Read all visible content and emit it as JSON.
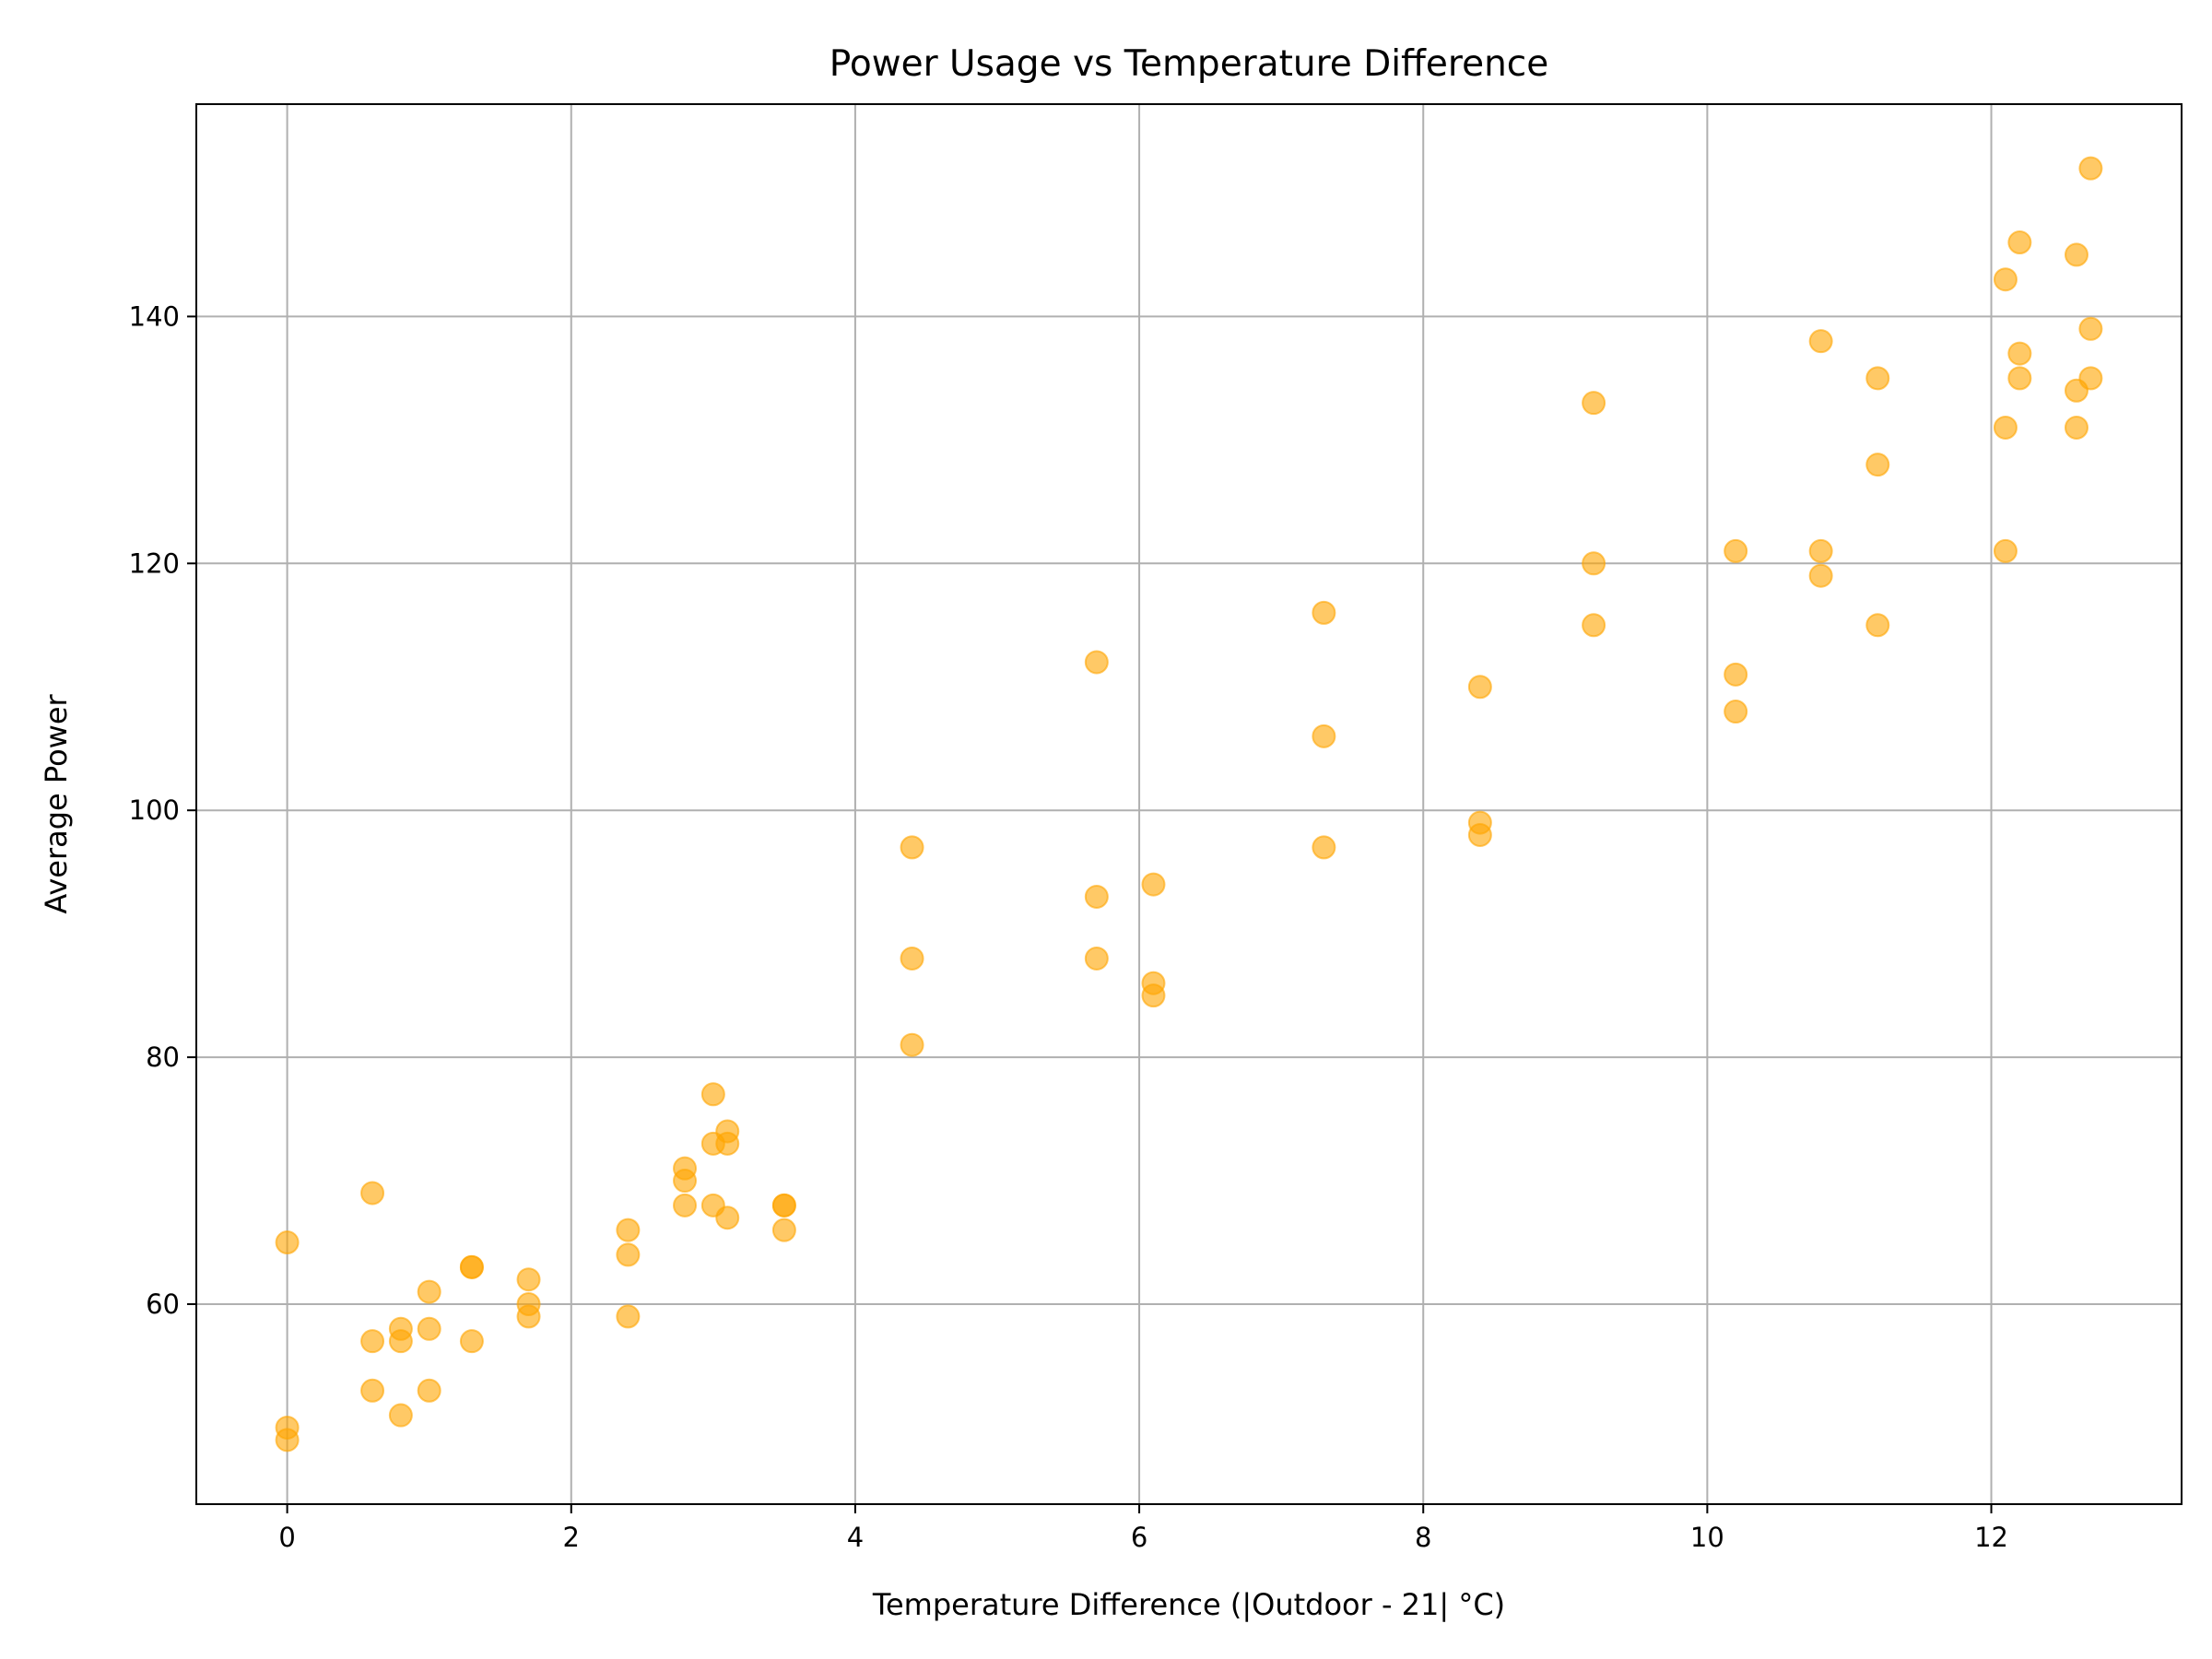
{
  "chart_data": {
    "type": "scatter",
    "title": "Power Usage vs Temperature Difference",
    "xlabel": "Temperature Difference (|Outdoor - 21| °C)",
    "ylabel": "Average Power",
    "xlim": [
      -0.64,
      13.34
    ],
    "ylim": [
      43.8,
      157.2
    ],
    "xticks": [
      0,
      2,
      4,
      6,
      8,
      10,
      12
    ],
    "yticks": [
      60,
      80,
      100,
      120,
      140
    ],
    "grid": true,
    "legend": "none",
    "marker_color": "#FFA500",
    "marker_alpha": 0.6,
    "points": [
      [
        0,
        65
      ],
      [
        0,
        50
      ],
      [
        0,
        49
      ],
      [
        0.6,
        69
      ],
      [
        0.6,
        57
      ],
      [
        0.6,
        53
      ],
      [
        0.8,
        58
      ],
      [
        0.8,
        57
      ],
      [
        0.8,
        51
      ],
      [
        1.0,
        61
      ],
      [
        1.0,
        58
      ],
      [
        1.0,
        53
      ],
      [
        1.3,
        63
      ],
      [
        1.3,
        63
      ],
      [
        1.3,
        57
      ],
      [
        1.7,
        62
      ],
      [
        1.7,
        60
      ],
      [
        1.7,
        59
      ],
      [
        2.4,
        66
      ],
      [
        2.4,
        64
      ],
      [
        2.4,
        59
      ],
      [
        2.8,
        71
      ],
      [
        2.8,
        70
      ],
      [
        2.8,
        68
      ],
      [
        3.0,
        77
      ],
      [
        3.0,
        73
      ],
      [
        3.0,
        68
      ],
      [
        3.1,
        74
      ],
      [
        3.1,
        73
      ],
      [
        3.1,
        67
      ],
      [
        3.5,
        68
      ],
      [
        3.5,
        68
      ],
      [
        3.5,
        66
      ],
      [
        4.4,
        97
      ],
      [
        4.4,
        88
      ],
      [
        4.4,
        81
      ],
      [
        5.7,
        112
      ],
      [
        5.7,
        93
      ],
      [
        5.7,
        88
      ],
      [
        6.1,
        94
      ],
      [
        6.1,
        86
      ],
      [
        6.1,
        85
      ],
      [
        7.3,
        116
      ],
      [
        7.3,
        106
      ],
      [
        7.3,
        97
      ],
      [
        8.4,
        110
      ],
      [
        8.4,
        99
      ],
      [
        8.4,
        98
      ],
      [
        9.2,
        133
      ],
      [
        9.2,
        120
      ],
      [
        9.2,
        115
      ],
      [
        10.2,
        121
      ],
      [
        10.2,
        111
      ],
      [
        10.2,
        108
      ],
      [
        10.8,
        138
      ],
      [
        10.8,
        121
      ],
      [
        10.8,
        119
      ],
      [
        11.2,
        135
      ],
      [
        11.2,
        128
      ],
      [
        11.2,
        115
      ],
      [
        12.1,
        143
      ],
      [
        12.1,
        131
      ],
      [
        12.1,
        121
      ],
      [
        12.2,
        146
      ],
      [
        12.2,
        137
      ],
      [
        12.2,
        135
      ],
      [
        12.6,
        145
      ],
      [
        12.6,
        134
      ],
      [
        12.6,
        131
      ],
      [
        12.7,
        152
      ],
      [
        12.7,
        139
      ],
      [
        12.7,
        135
      ]
    ]
  }
}
